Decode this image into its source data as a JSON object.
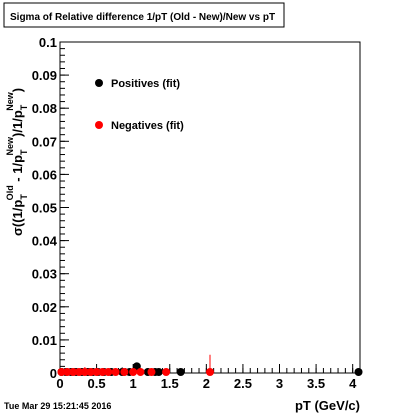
{
  "chart_data": {
    "type": "scatter",
    "title": "Sigma of Relative difference 1/pT (Old - New)/New vs pT",
    "xlabel": "pT (GeV/c)",
    "ylabel": {
      "prefix": "σ((1/p",
      "sub1": "T",
      "sup1": "Old",
      "mid": " - 1/p",
      "sub2": "T",
      "sup2": "New",
      "mid2": ")/1/p",
      "sub3": "T",
      "sup3": "New",
      "suffix": ")"
    },
    "xlim": [
      0,
      4.1
    ],
    "ylim": [
      0,
      0.1
    ],
    "x_ticks": [
      0,
      0.5,
      1,
      1.5,
      2,
      2.5,
      3,
      3.5,
      4
    ],
    "x_tick_labels": [
      "0",
      "0.5",
      "1",
      "1.5",
      "2",
      "2.5",
      "3",
      "3.5",
      "4"
    ],
    "y_ticks": [
      0,
      0.01,
      0.02,
      0.03,
      0.04,
      0.05,
      0.06,
      0.07,
      0.08,
      0.09,
      0.1
    ],
    "y_tick_labels": [
      "0",
      "0.01",
      "0.02",
      "0.03",
      "0.04",
      "0.05",
      "0.06",
      "0.07",
      "0.08",
      "0.09",
      "0.1"
    ],
    "legend_placement": "top-left",
    "series": [
      {
        "name": "Positives (fit)",
        "color": "#000000",
        "points": [
          {
            "x": 0.02,
            "y": 0.0,
            "err": 0.0005
          },
          {
            "x": 0.08,
            "y": 0.0,
            "err": 0.0004
          },
          {
            "x": 0.15,
            "y": 0.0002,
            "err": 0.0009
          },
          {
            "x": 0.22,
            "y": 0.0001,
            "err": 0.001
          },
          {
            "x": 0.3,
            "y": 0.0002,
            "err": 0.0012
          },
          {
            "x": 0.38,
            "y": 0.0003,
            "err": 0.0011
          },
          {
            "x": 0.45,
            "y": 0.0002,
            "err": 0.001
          },
          {
            "x": 0.52,
            "y": 0.0002,
            "err": 0.0012
          },
          {
            "x": 0.6,
            "y": 0.0001,
            "err": 0.001
          },
          {
            "x": 0.7,
            "y": 0.0001,
            "err": 0.0012
          },
          {
            "x": 0.85,
            "y": 0.0002,
            "err": 0.0015
          },
          {
            "x": 0.95,
            "y": 0.0003,
            "err": 0.0008
          },
          {
            "x": 1.05,
            "y": 0.002,
            "err": 0.0012
          },
          {
            "x": 1.2,
            "y": 0.0,
            "err": 0.0003
          },
          {
            "x": 1.3,
            "y": 0.0,
            "err": 0.0003
          },
          {
            "x": 1.35,
            "y": 0.0,
            "err": 0.0002
          },
          {
            "x": 1.65,
            "y": 0.0,
            "err": 0.0002
          },
          {
            "x": 4.08,
            "y": 0.0,
            "err": 0.0
          }
        ]
      },
      {
        "name": "Negatives (fit)",
        "color": "#ff0000",
        "points": [
          {
            "x": 0.02,
            "y": 0.0,
            "err": 0.0006
          },
          {
            "x": 0.1,
            "y": 0.0001,
            "err": 0.0008
          },
          {
            "x": 0.18,
            "y": 0.0001,
            "err": 0.001
          },
          {
            "x": 0.26,
            "y": 0.0002,
            "err": 0.0012
          },
          {
            "x": 0.34,
            "y": 0.0003,
            "err": 0.0015
          },
          {
            "x": 0.42,
            "y": 0.0002,
            "err": 0.001
          },
          {
            "x": 0.5,
            "y": 0.0003,
            "err": 0.0012
          },
          {
            "x": 0.58,
            "y": 0.0002,
            "err": 0.0011
          },
          {
            "x": 0.66,
            "y": 0.0001,
            "err": 0.0009
          },
          {
            "x": 0.76,
            "y": 0.0002,
            "err": 0.0012
          },
          {
            "x": 0.88,
            "y": 0.0001,
            "err": 0.001
          },
          {
            "x": 1.0,
            "y": 0.0002,
            "err": 0.0011
          },
          {
            "x": 1.1,
            "y": 0.0001,
            "err": 0.0009
          },
          {
            "x": 1.25,
            "y": 0.0,
            "err": 0.0006
          },
          {
            "x": 1.45,
            "y": 0.0,
            "err": 0.0004
          },
          {
            "x": 2.05,
            "y": 0.0,
            "err": 0.0055
          }
        ]
      }
    ]
  },
  "footer": {
    "timestamp": "Tue Mar 29 15:21:45 2016"
  }
}
